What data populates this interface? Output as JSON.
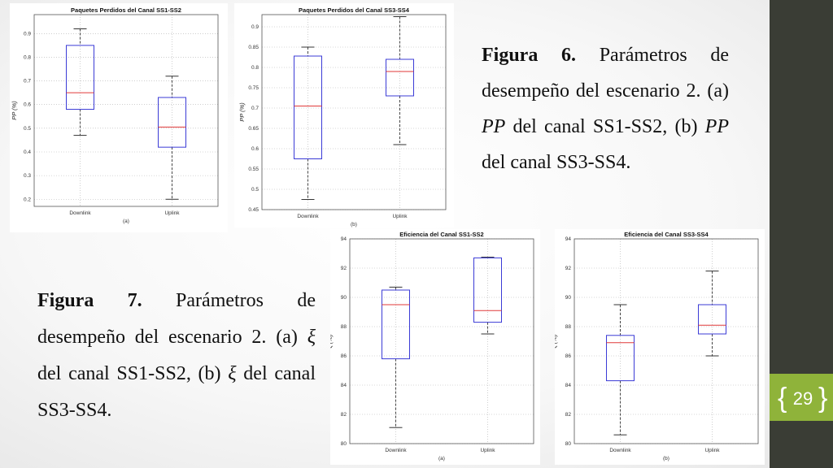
{
  "slide": {
    "page_number": "29",
    "caption6": {
      "label": "Figura 6.",
      "t1": "Parámetros de desempeño del escenario 2. (a) ",
      "pp1": "PP",
      "t2": " del canal SS1-SS2, (b) ",
      "pp2": "PP",
      "t3": " del canal SS3-SS4."
    },
    "caption7": {
      "label": "Figura 7.",
      "t1": "Parámetros de desempeño del escenario 2. (a) ",
      "xi1": "ξ",
      "t2": " del canal SS1-SS2, (b) ",
      "xi2": "ξ",
      "t3": " del canal SS3-SS4."
    }
  },
  "colors": {
    "box": "#3b3bd6",
    "median": "#e03a3a",
    "whisker": "#333333",
    "grid": "#b0b0b0",
    "sidebar": "#3a3d35",
    "accent": "#8fb33a"
  },
  "chart_data": [
    {
      "type": "box",
      "title": "Paquetes Perdidos del Canal SS1-SS2",
      "ylabel": "PP (%)",
      "xlabel": "",
      "tag": "(a)",
      "ylim": [
        0.17,
        0.98
      ],
      "yticks": [
        0.2,
        0.3,
        0.4,
        0.5,
        0.6,
        0.7,
        0.8,
        0.9
      ],
      "ytick_labels": [
        "0.2",
        "0.3",
        "0.4",
        "0.5",
        "0.6",
        "0.7",
        "0.8",
        "0.9"
      ],
      "categories": [
        "Downlink",
        "Uplink"
      ],
      "boxes": [
        {
          "min": 0.47,
          "q1": 0.58,
          "median": 0.65,
          "q3": 0.85,
          "max": 0.92
        },
        {
          "min": 0.2,
          "q1": 0.42,
          "median": 0.505,
          "q3": 0.63,
          "max": 0.72
        }
      ]
    },
    {
      "type": "box",
      "title": "Paquetes Perdidos del Canal SS3-SS4",
      "ylabel": "PP (%)",
      "xlabel": "",
      "tag": "(b)",
      "ylim": [
        0.45,
        0.93
      ],
      "yticks": [
        0.45,
        0.5,
        0.55,
        0.6,
        0.65,
        0.7,
        0.75,
        0.8,
        0.85,
        0.9
      ],
      "ytick_labels": [
        "0.45",
        "0.5",
        "0.55",
        "0.6",
        "0.65",
        "0.7",
        "0.75",
        "0.8",
        "0.85",
        "0.9"
      ],
      "categories": [
        "Downlink",
        "Uplink"
      ],
      "boxes": [
        {
          "min": 0.475,
          "q1": 0.575,
          "median": 0.705,
          "q3": 0.828,
          "max": 0.85
        },
        {
          "min": 0.61,
          "q1": 0.73,
          "median": 0.79,
          "q3": 0.82,
          "max": 0.925
        }
      ]
    },
    {
      "type": "box",
      "title": "Eficiencia del Canal SS1-SS2",
      "ylabel": "ξ (%)",
      "xlabel": "",
      "tag": "(a)",
      "ylim": [
        80,
        94
      ],
      "yticks": [
        80,
        82,
        84,
        86,
        88,
        90,
        92,
        94
      ],
      "ytick_labels": [
        "80",
        "82",
        "84",
        "86",
        "88",
        "90",
        "92",
        "94"
      ],
      "categories": [
        "Downlink",
        "Uplink"
      ],
      "boxes": [
        {
          "min": 81.1,
          "q1": 85.8,
          "median": 89.5,
          "q3": 90.5,
          "max": 90.7
        },
        {
          "min": 87.5,
          "q1": 88.3,
          "median": 89.1,
          "q3": 92.7,
          "max": 92.75
        }
      ]
    },
    {
      "type": "box",
      "title": "Eficiencia del Canal SS3-SS4",
      "ylabel": "ξ (%)",
      "xlabel": "",
      "tag": "(b)",
      "ylim": [
        80,
        94
      ],
      "yticks": [
        80,
        82,
        84,
        86,
        88,
        90,
        92,
        94
      ],
      "ytick_labels": [
        "80",
        "82",
        "84",
        "86",
        "88",
        "90",
        "92",
        "94"
      ],
      "categories": [
        "Downlink",
        "Uplink"
      ],
      "boxes": [
        {
          "min": 80.6,
          "q1": 84.3,
          "median": 86.9,
          "q3": 87.4,
          "max": 89.5
        },
        {
          "min": 86.0,
          "q1": 87.5,
          "median": 88.1,
          "q3": 89.5,
          "max": 91.8
        }
      ]
    }
  ]
}
